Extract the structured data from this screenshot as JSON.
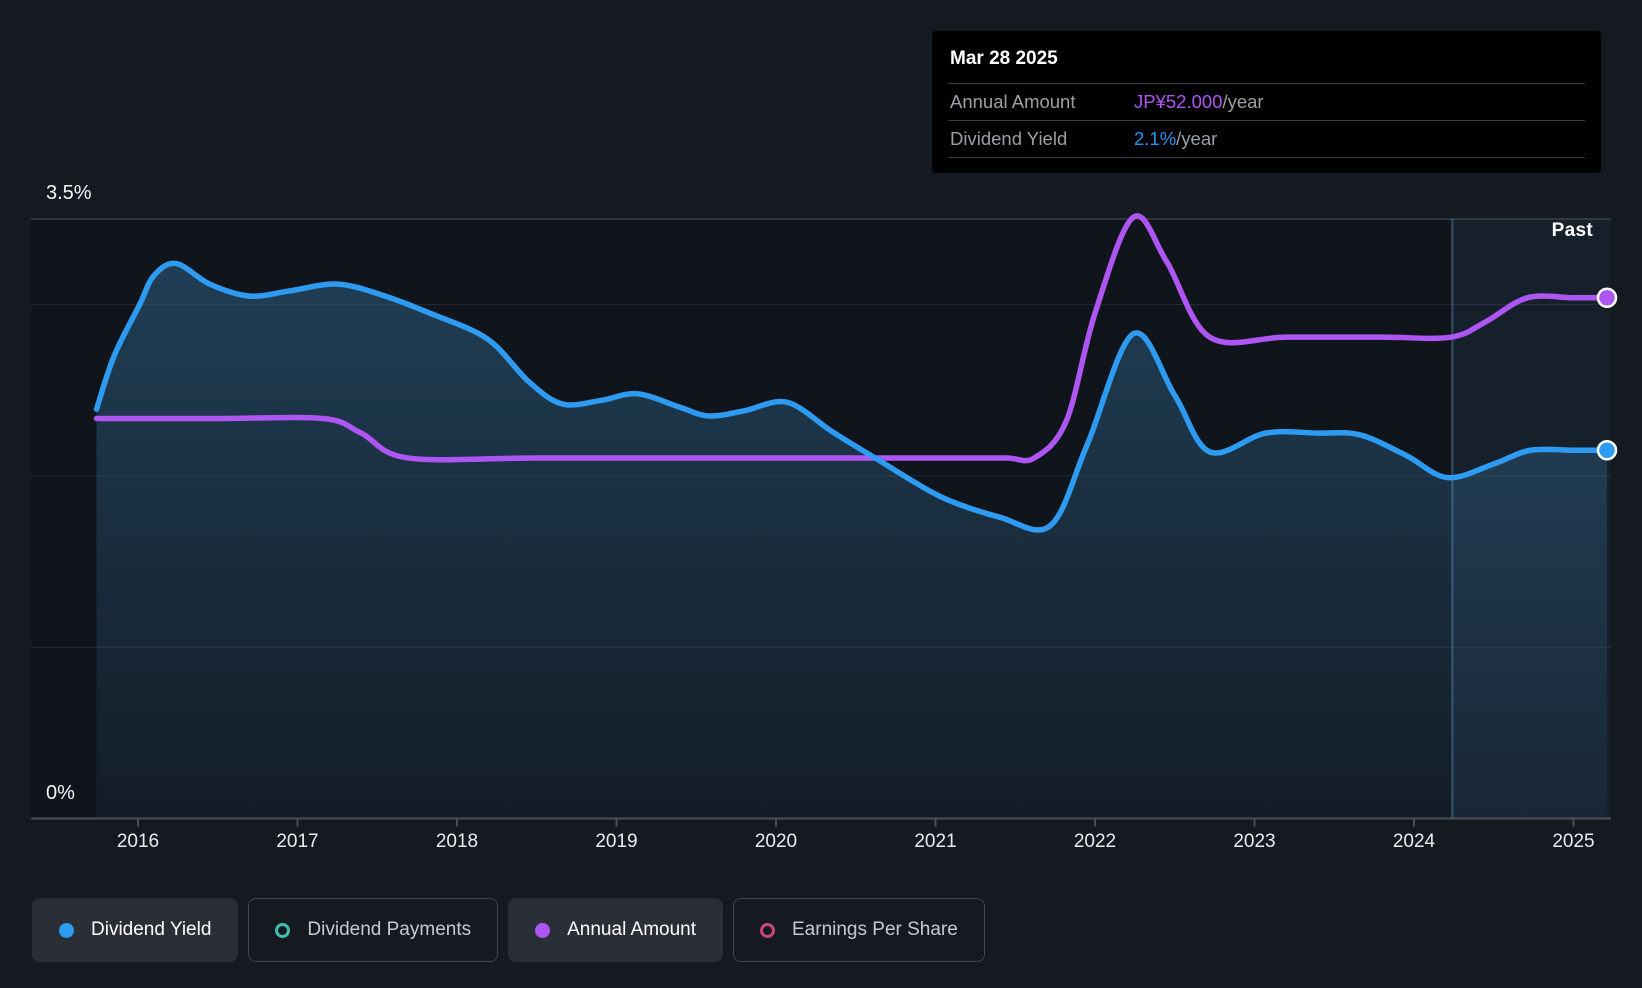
{
  "colors": {
    "page_bg": "#151a21",
    "plot_bg": "#10151c",
    "grid_strong": "#3a3f47",
    "grid_faint": "#242a33",
    "axis": "#4a5057",
    "blue": "#2e9bf2",
    "purple": "#ae56f3",
    "teal": "#3fbfae",
    "pink": "#cc4778",
    "area_fill": "#3a82b4",
    "past_tint": "rgba(100,165,225,0.08)",
    "past_line": "rgba(120,180,235,0.28)",
    "tooltip_bg": "#000000"
  },
  "tooltip": {
    "title": "Mar 28 2025",
    "rows": [
      {
        "label": "Annual Amount",
        "value": "JP¥52.000",
        "suffix": "/year",
        "value_color": "#ae56f3"
      },
      {
        "label": "Dividend Yield",
        "value": "2.1%",
        "suffix": "/year",
        "value_color": "#2196f3"
      }
    ]
  },
  "past_label": "Past",
  "y_axis": {
    "top_label": "3.5%",
    "bottom_label": "0%"
  },
  "x_axis": {
    "years": [
      "2016",
      "2017",
      "2018",
      "2019",
      "2020",
      "2021",
      "2022",
      "2023",
      "2024",
      "2025"
    ]
  },
  "legend": [
    {
      "label": "Dividend Yield",
      "marker": "dot",
      "color": "#2e9bf2",
      "active": true
    },
    {
      "label": "Dividend Payments",
      "marker": "ring",
      "color": "#3fbfae",
      "active": false
    },
    {
      "label": "Annual Amount",
      "marker": "dot",
      "color": "#ae56f3",
      "active": true
    },
    {
      "label": "Earnings Per Share",
      "marker": "ring",
      "color": "#cc4778",
      "active": false
    }
  ],
  "chart_data": {
    "type": "line",
    "ylim": [
      0,
      3.5
    ],
    "x_range": [
      2015.74,
      2025.22
    ],
    "gridlines_pct": [
      3.5,
      3.0,
      2.0,
      1.0
    ],
    "past_start_year": 2024.24,
    "grid": true,
    "legend_position": "bottom",
    "series": [
      {
        "name": "Dividend Yield",
        "color": "#2e9bf2",
        "area": true,
        "end_marker": true,
        "current_value": "2.1%/year",
        "points": [
          [
            2015.74,
            2.39
          ],
          [
            2015.85,
            2.7
          ],
          [
            2016.01,
            3.0
          ],
          [
            2016.1,
            3.17
          ],
          [
            2016.24,
            3.24
          ],
          [
            2016.45,
            3.12
          ],
          [
            2016.7,
            3.05
          ],
          [
            2016.95,
            3.08
          ],
          [
            2017.25,
            3.12
          ],
          [
            2017.55,
            3.05
          ],
          [
            2017.83,
            2.95
          ],
          [
            2018.19,
            2.8
          ],
          [
            2018.45,
            2.55
          ],
          [
            2018.66,
            2.42
          ],
          [
            2018.9,
            2.44
          ],
          [
            2019.13,
            2.48
          ],
          [
            2019.4,
            2.4
          ],
          [
            2019.58,
            2.35
          ],
          [
            2019.8,
            2.38
          ],
          [
            2020.07,
            2.43
          ],
          [
            2020.35,
            2.26
          ],
          [
            2020.63,
            2.1
          ],
          [
            2021.03,
            1.88
          ],
          [
            2021.4,
            1.76
          ],
          [
            2021.72,
            1.71
          ],
          [
            2021.95,
            2.18
          ],
          [
            2022.24,
            2.83
          ],
          [
            2022.5,
            2.47
          ],
          [
            2022.72,
            2.14
          ],
          [
            2023.07,
            2.25
          ],
          [
            2023.4,
            2.25
          ],
          [
            2023.66,
            2.24
          ],
          [
            2023.95,
            2.12
          ],
          [
            2024.21,
            1.99
          ],
          [
            2024.5,
            2.07
          ],
          [
            2024.73,
            2.15
          ],
          [
            2025.0,
            2.15
          ],
          [
            2025.21,
            2.15
          ]
        ]
      },
      {
        "name": "Annual Amount",
        "color": "#ae56f3",
        "area": false,
        "end_marker": true,
        "current_value": "JP¥52.000/year",
        "points": [
          [
            2015.74,
            2.335
          ],
          [
            2016.5,
            2.335
          ],
          [
            2017.16,
            2.335
          ],
          [
            2017.4,
            2.25
          ],
          [
            2017.69,
            2.105
          ],
          [
            2018.5,
            2.105
          ],
          [
            2019.5,
            2.105
          ],
          [
            2020.5,
            2.105
          ],
          [
            2021.2,
            2.105
          ],
          [
            2021.45,
            2.105
          ],
          [
            2021.62,
            2.105
          ],
          [
            2021.82,
            2.32
          ],
          [
            2022.0,
            2.95
          ],
          [
            2022.24,
            3.51
          ],
          [
            2022.45,
            3.25
          ],
          [
            2022.72,
            2.81
          ],
          [
            2023.2,
            2.81
          ],
          [
            2023.8,
            2.81
          ],
          [
            2024.23,
            2.81
          ],
          [
            2024.45,
            2.9
          ],
          [
            2024.71,
            3.04
          ],
          [
            2025.0,
            3.04
          ],
          [
            2025.21,
            3.04
          ]
        ]
      }
    ]
  }
}
